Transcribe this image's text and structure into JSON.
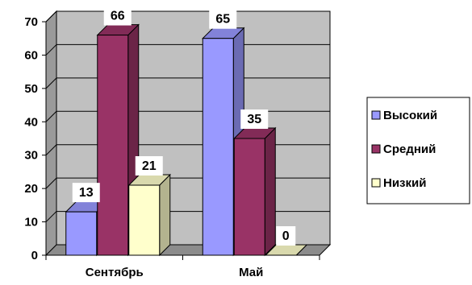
{
  "chart_data": {
    "type": "bar",
    "categories": [
      "Сентябрь",
      "Май"
    ],
    "series": [
      {
        "name": "Высокий",
        "values": [
          13,
          65
        ],
        "color": "#9999ff"
      },
      {
        "name": "Средний",
        "values": [
          66,
          35
        ],
        "color": "#993366"
      },
      {
        "name": "Низкий",
        "values": [
          21,
          0
        ],
        "color": "#ffffcc"
      }
    ],
    "ylim": [
      0,
      70
    ],
    "yticks": [
      "0",
      "10",
      "20",
      "30",
      "40",
      "50",
      "60",
      "70"
    ],
    "grid": true,
    "legend": "right",
    "wall_color": "#c0c0c0"
  }
}
